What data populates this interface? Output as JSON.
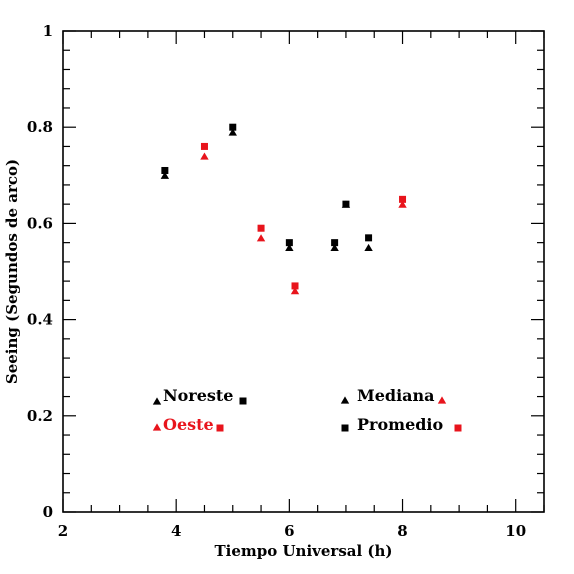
{
  "chart_data": {
    "type": "scatter",
    "xlabel": "Tiempo Universal (h)",
    "ylabel": "Seeing (Segundos de arco)",
    "xlim": [
      2,
      10.5
    ],
    "ylim": [
      0,
      1
    ],
    "x_ticks": [
      "2",
      "4",
      "6",
      "8",
      "10"
    ],
    "y_ticks": [
      "0",
      "0.2",
      "0.4",
      "0.6",
      "0.8",
      "1"
    ],
    "grid": false,
    "series": [
      {
        "name": "Noreste",
        "color": "#000000",
        "points": [
          {
            "x": 3.8,
            "mediana": 0.7,
            "promedio": 0.71
          },
          {
            "x": 5.0,
            "mediana": 0.79,
            "promedio": 0.8
          },
          {
            "x": 6.0,
            "mediana": 0.55,
            "promedio": 0.56
          },
          {
            "x": 6.8,
            "mediana": 0.55,
            "promedio": 0.56
          },
          {
            "x": 7.0,
            "mediana": 0.64,
            "promedio": 0.64
          },
          {
            "x": 7.4,
            "mediana": 0.55,
            "promedio": 0.57
          }
        ]
      },
      {
        "name": "Oeste",
        "color": "#e8141c",
        "points": [
          {
            "x": 4.5,
            "mediana": 0.74,
            "promedio": 0.76
          },
          {
            "x": 5.5,
            "mediana": 0.57,
            "promedio": 0.59
          },
          {
            "x": 6.1,
            "mediana": 0.46,
            "promedio": 0.47
          },
          {
            "x": 8.0,
            "mediana": 0.64,
            "promedio": 0.65
          }
        ]
      }
    ],
    "statistics": [
      {
        "name": "Mediana",
        "marker": "triangle"
      },
      {
        "name": "Promedio",
        "marker": "square"
      }
    ],
    "legend_placement": "bottom-left and bottom-right"
  }
}
